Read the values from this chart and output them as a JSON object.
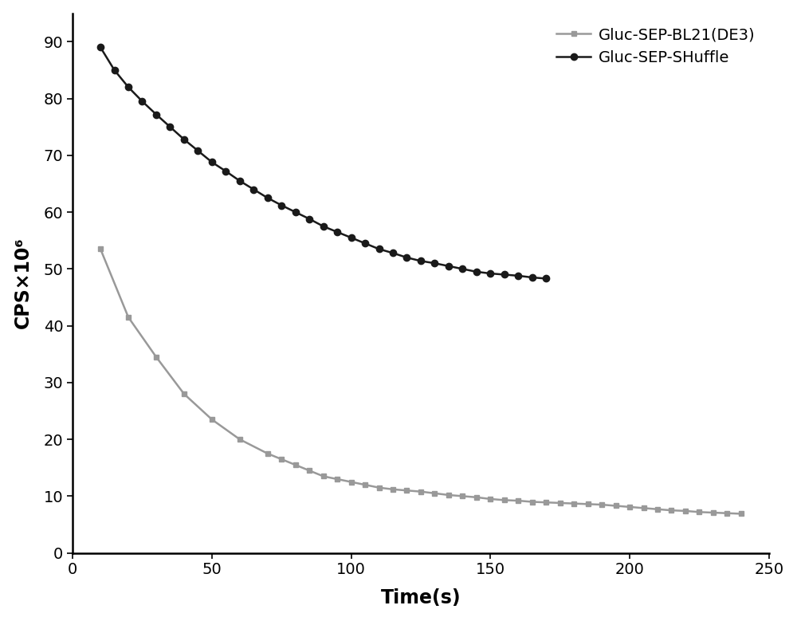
{
  "shuffle_x": [
    10,
    15,
    20,
    25,
    30,
    35,
    40,
    45,
    50,
    55,
    60,
    65,
    70,
    75,
    80,
    85,
    90,
    95,
    100,
    105,
    110,
    115,
    120,
    125,
    130,
    135,
    140,
    145,
    150,
    155,
    160,
    165,
    170
  ],
  "shuffle_y": [
    89.0,
    85.0,
    82.0,
    79.5,
    77.2,
    75.0,
    72.8,
    70.8,
    68.8,
    67.2,
    65.5,
    64.0,
    62.5,
    61.2,
    60.0,
    58.8,
    57.5,
    56.5,
    55.5,
    54.5,
    53.5,
    52.8,
    52.0,
    51.4,
    51.0,
    50.5,
    50.0,
    49.5,
    49.2,
    49.0,
    48.8,
    48.5,
    48.3
  ],
  "bl21_x": [
    10,
    20,
    30,
    40,
    50,
    60,
    70,
    75,
    80,
    85,
    90,
    95,
    100,
    105,
    110,
    115,
    120,
    125,
    130,
    135,
    140,
    145,
    150,
    155,
    160,
    165,
    170,
    175,
    180,
    185,
    190,
    195,
    200,
    205,
    210,
    215,
    220,
    225,
    230,
    235,
    240
  ],
  "bl21_y": [
    53.5,
    41.5,
    34.5,
    28.0,
    23.5,
    20.0,
    17.5,
    16.5,
    15.5,
    14.5,
    13.5,
    13.0,
    12.5,
    12.0,
    11.5,
    11.2,
    11.0,
    10.8,
    10.5,
    10.2,
    10.0,
    9.8,
    9.5,
    9.3,
    9.2,
    9.0,
    8.9,
    8.8,
    8.7,
    8.6,
    8.5,
    8.3,
    8.1,
    7.9,
    7.7,
    7.5,
    7.4,
    7.2,
    7.1,
    7.0,
    6.9
  ],
  "shuffle_color": "#1a1a1a",
  "bl21_color": "#999999",
  "shuffle_label": "Gluc-SEP-SHuffle",
  "bl21_label": "Gluc-SEP-BL21(DE3)",
  "xlabel": "Time(s)",
  "ylabel": "CPS×10⁶",
  "xlim": [
    0,
    250
  ],
  "ylim": [
    0,
    95
  ],
  "xticks": [
    0,
    50,
    100,
    150,
    200,
    250
  ],
  "yticks": [
    0,
    10,
    20,
    30,
    40,
    50,
    60,
    70,
    80,
    90
  ],
  "linewidth": 1.8,
  "markersize_circle": 6,
  "markersize_square": 5,
  "legend_fontsize": 14,
  "axis_label_fontsize": 17,
  "tick_fontsize": 14,
  "figure_width": 10.0,
  "figure_height": 7.79,
  "dpi": 100
}
